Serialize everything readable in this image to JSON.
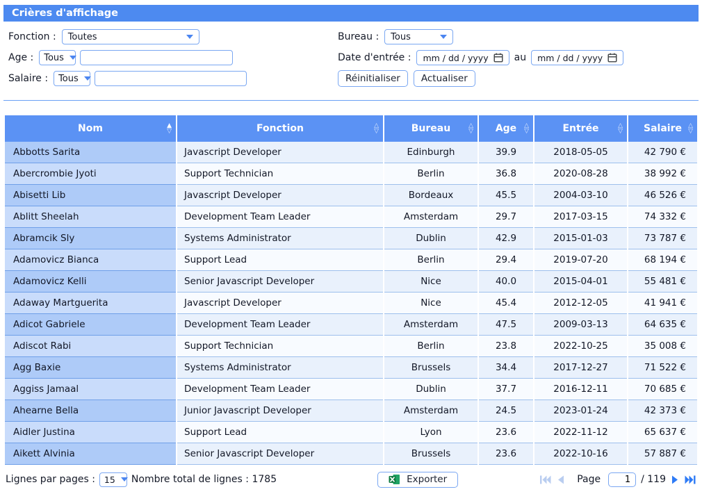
{
  "title_bar": {
    "label": "Crières d'affichage"
  },
  "filters": {
    "fonction_label": "Fonction :",
    "fonction_value": "Toutes",
    "age_label": "Age :",
    "age_op_value": "Tous",
    "age_input_value": "",
    "salaire_label": "Salaire :",
    "salaire_op_value": "Tous",
    "salaire_input_value": "",
    "bureau_label": "Bureau :",
    "bureau_value": "Tous",
    "date_label": "Date d'entrée :",
    "date_from_value": "mm / dd / yyyy",
    "date_join_label": "au",
    "date_to_value": "mm / dd / yyyy",
    "reset_button": "Réinitialiser",
    "refresh_button": "Actualiser"
  },
  "table": {
    "columns": [
      {
        "label": "Nom",
        "sorted": "asc"
      },
      {
        "label": "Fonction",
        "sorted": "none"
      },
      {
        "label": "Bureau",
        "sorted": "none"
      },
      {
        "label": "Age",
        "sorted": "none"
      },
      {
        "label": "Entrée",
        "sorted": "none"
      },
      {
        "label": "Salaire",
        "sorted": "none"
      }
    ],
    "rows": [
      [
        "Abbotts Sarita",
        "Javascript Developer",
        "Edinburgh",
        "39.9",
        "2018-05-05",
        "42 790 €"
      ],
      [
        "Abercrombie Jyoti",
        "Support Technician",
        "Berlin",
        "36.8",
        "2020-08-28",
        "38 992 €"
      ],
      [
        "Abisetti Lib",
        "Javascript Developer",
        "Bordeaux",
        "45.5",
        "2004-03-10",
        "46 526 €"
      ],
      [
        "Ablitt Sheelah",
        "Development Team Leader",
        "Amsterdam",
        "29.7",
        "2017-03-15",
        "74 332 €"
      ],
      [
        "Abramcik Sly",
        "Systems Administrator",
        "Dublin",
        "42.9",
        "2015-01-03",
        "73 787 €"
      ],
      [
        "Adamovicz Bianca",
        "Support Lead",
        "Berlin",
        "29.4",
        "2019-07-20",
        "68 194 €"
      ],
      [
        "Adamovicz Kelli",
        "Senior Javascript Developer",
        "Nice",
        "40.0",
        "2015-04-01",
        "55 481 €"
      ],
      [
        "Adaway Martguerita",
        "Javascript Developer",
        "Nice",
        "45.4",
        "2012-12-05",
        "41 941 €"
      ],
      [
        "Adicot Gabriele",
        "Development Team Leader",
        "Amsterdam",
        "47.5",
        "2009-03-13",
        "64 635 €"
      ],
      [
        "Adiscot Rabi",
        "Support Technician",
        "Berlin",
        "23.8",
        "2022-10-25",
        "35 008 €"
      ],
      [
        "Agg Baxie",
        "Systems Administrator",
        "Brussels",
        "34.4",
        "2017-12-27",
        "71 522 €"
      ],
      [
        "Aggiss Jamaal",
        "Development Team Leader",
        "Dublin",
        "37.7",
        "2016-12-11",
        "70 685 €"
      ],
      [
        "Ahearne Bella",
        "Junior Javascript Developer",
        "Amsterdam",
        "24.5",
        "2023-01-24",
        "42 373 €"
      ],
      [
        "Aidler Justina",
        "Support Lead",
        "Lyon",
        "23.6",
        "2022-11-12",
        "65 637 €"
      ],
      [
        "Aikett Alvinia",
        "Senior Javascript Developer",
        "Brussels",
        "23.6",
        "2022-10-16",
        "57 887 €"
      ]
    ]
  },
  "footer": {
    "rows_per_page_label": "Lignes par pages :",
    "rows_per_page_value": "15",
    "total_label": "Nombre total de lignes :",
    "total_value": "1785",
    "export_button": "Exporter",
    "page_label": "Page",
    "page_input_value": "1",
    "page_total": "/ 119"
  },
  "colors": {
    "accent_blue": "#4d8af0",
    "header_blue": "#5b92f4",
    "row_nom_odd": "#aecbf8",
    "row_nom_even": "#c9dcfb",
    "row_odd": "#e9f1fc",
    "row_even": "#f8fbff",
    "control_border": "#7aa7f2",
    "excel_green_dark": "#107c41",
    "excel_green_light": "#21a366",
    "pagination_active": "#2e7bf6",
    "pagination_disabled": "#b9cdf0"
  }
}
